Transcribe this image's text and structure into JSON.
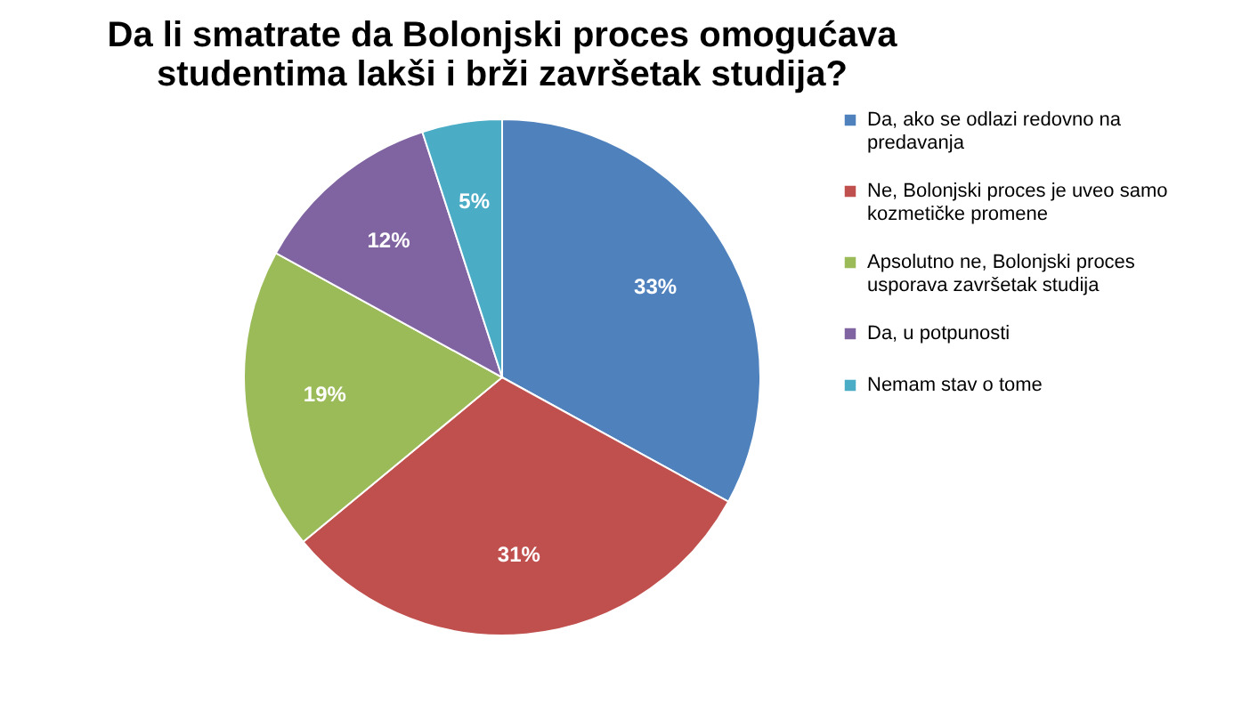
{
  "chart_data": {
    "type": "pie",
    "title": "Da li smatrate da Bolonjski proces omogućava studentima lakši i brži završetak studija?",
    "categories": [
      "Da, ako se odlazi redovno na predavanja",
      "Ne, Bolonjski proces je uveo samo kozmetičke promene",
      "Apsolutno ne, Bolonjski proces usporava završetak studija",
      "Da, u potpunosti",
      "Nemam stav o tome"
    ],
    "values": [
      33,
      31,
      19,
      12,
      5
    ],
    "colors": [
      "#4f81bd",
      "#c0504d",
      "#9bbb59",
      "#8064a2",
      "#4bacc6"
    ],
    "value_labels": [
      "33%",
      "31%",
      "19%",
      "12%",
      "5%"
    ],
    "legend": "right"
  }
}
